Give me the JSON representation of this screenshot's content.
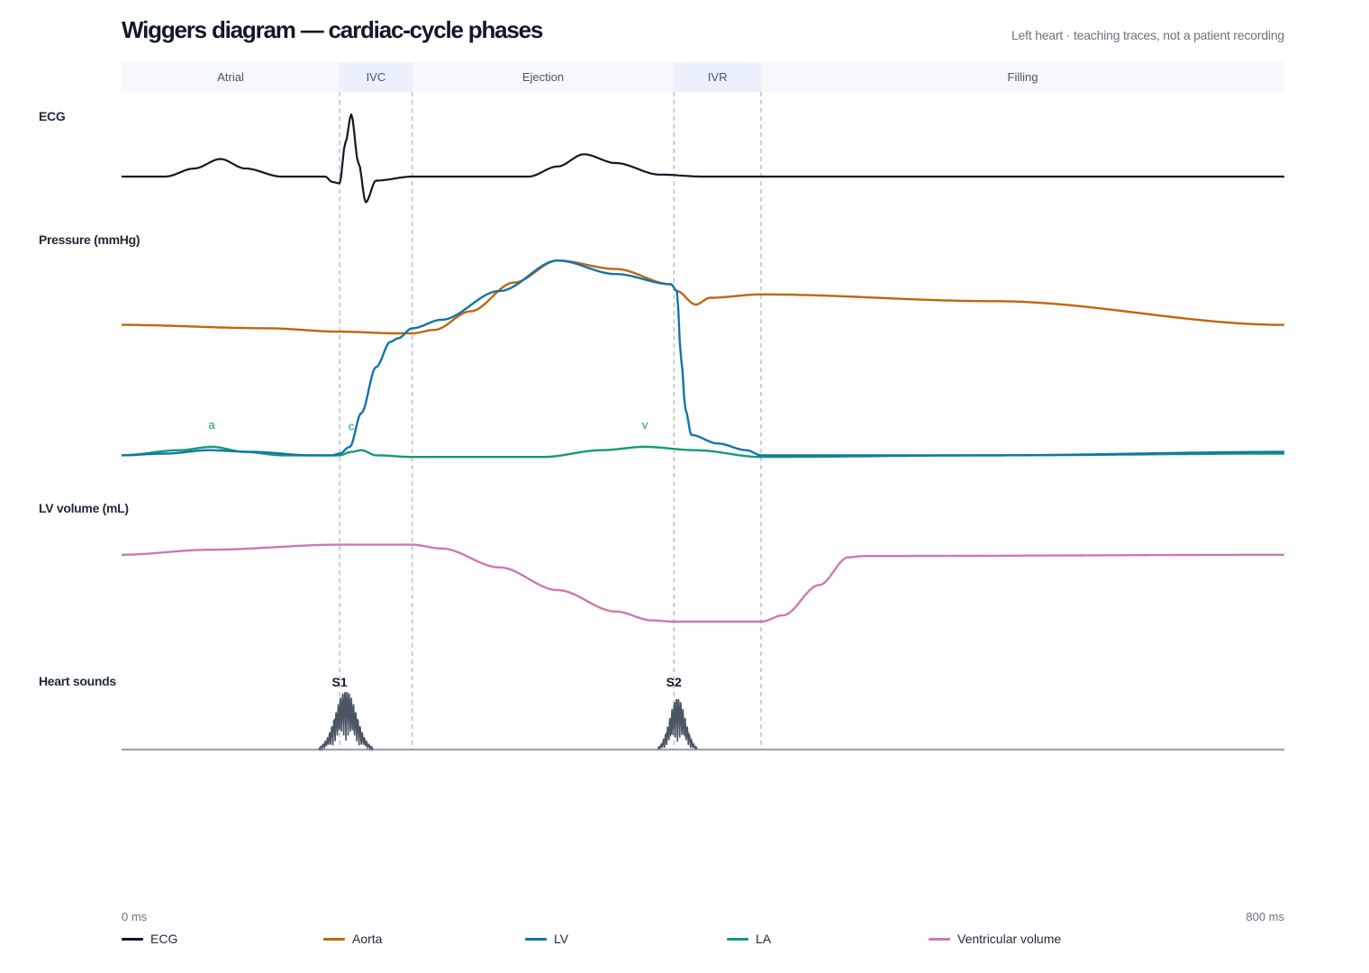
{
  "title": "Wiggers diagram — cardiac-cycle phases",
  "subtitle": "Left heart · teaching traces, not a patient recording",
  "panels": {
    "ecg": "ECG",
    "pressure": "Pressure (mmHg)",
    "volume": "LV volume (mL)",
    "sounds": "Heart sounds"
  },
  "phases": [
    {
      "label": "Atrial",
      "start_ms": 0,
      "end_ms": 150,
      "highlight": false
    },
    {
      "label": "IVC",
      "start_ms": 150,
      "end_ms": 200,
      "highlight": true
    },
    {
      "label": "Ejection",
      "start_ms": 200,
      "end_ms": 380,
      "highlight": false
    },
    {
      "label": "IVR",
      "start_ms": 380,
      "end_ms": 440,
      "highlight": true
    },
    {
      "label": "Filling",
      "start_ms": 440,
      "end_ms": 800,
      "highlight": false
    }
  ],
  "axis": {
    "start_label": "0 ms",
    "end_label": "800 ms"
  },
  "la_wave_labels": [
    {
      "label": "a",
      "t_ms": 62
    },
    {
      "label": "c",
      "t_ms": 158
    },
    {
      "label": "v",
      "t_ms": 360
    }
  ],
  "sound_labels": [
    {
      "label": "S1",
      "t_ms": 150
    },
    {
      "label": "S2",
      "t_ms": 380
    }
  ],
  "legend": [
    {
      "label": "ECG",
      "color": "#111827"
    },
    {
      "label": "Aorta",
      "color": "#c2650e"
    },
    {
      "label": "LV",
      "color": "#1275a8"
    },
    {
      "label": "LA",
      "color": "#16997a"
    },
    {
      "label": "Ventricular volume",
      "color": "#c97bb0"
    }
  ],
  "colors": {
    "phase_band": "#f6f8fb",
    "phase_band_highlight": "#eaf0fc",
    "divider": "#9ca3af",
    "sounds": "#4b5563"
  },
  "chart_data": {
    "type": "line",
    "x_unit": "ms",
    "xlim": [
      0,
      800
    ],
    "series": [
      {
        "name": "ECG",
        "x": [
          0,
          30,
          50,
          68,
          85,
          110,
          140,
          145,
          150,
          154,
          158,
          163,
          168,
          175,
          200,
          280,
          300,
          318,
          340,
          370,
          400,
          800
        ],
        "y": [
          0,
          0,
          0.12,
          0.26,
          0.12,
          0,
          0,
          -0.08,
          -0.1,
          0.5,
          0.92,
          0.2,
          -0.38,
          -0.06,
          0,
          0,
          0.15,
          0.33,
          0.2,
          0.03,
          0,
          0
        ]
      },
      {
        "name": "Aorta",
        "x": [
          0,
          100,
          150,
          190,
          200,
          215,
          240,
          270,
          300,
          340,
          378,
          382,
          395,
          405,
          440,
          600,
          800
        ],
        "y": [
          80,
          78,
          76,
          75,
          75,
          77,
          88,
          105,
          118,
          113,
          104,
          100,
          92,
          96,
          98,
          94,
          80
        ]
      },
      {
        "name": "LV",
        "x": [
          0,
          30,
          60,
          90,
          130,
          145,
          150,
          157,
          165,
          175,
          185,
          190,
          200,
          220,
          260,
          300,
          340,
          378,
          382,
          385,
          388,
          392,
          410,
          430,
          440,
          600,
          800
        ],
        "y": [
          3,
          4,
          6,
          5,
          3,
          3,
          4,
          8,
          28,
          55,
          70,
          72,
          78,
          83,
          100,
          118,
          110,
          104,
          100,
          60,
          30,
          15,
          10,
          6,
          3,
          3,
          5
        ]
      },
      {
        "name": "LA",
        "x": [
          0,
          40,
          62,
          85,
          110,
          150,
          158,
          165,
          175,
          200,
          290,
          330,
          360,
          395,
          440,
          600,
          800
        ],
        "y": [
          3,
          6,
          8,
          5,
          3,
          3,
          5,
          6,
          3,
          2,
          2,
          6,
          8,
          6,
          2,
          3,
          4
        ]
      },
      {
        "name": "Ventricular volume",
        "x": [
          0,
          60,
          150,
          200,
          220,
          260,
          300,
          340,
          365,
          380,
          440,
          455,
          480,
          500,
          510,
          800
        ],
        "y": [
          120,
          124,
          128,
          128,
          125,
          110,
          92,
          75,
          68,
          67,
          67,
          72,
          96,
          118,
          119,
          120
        ]
      }
    ]
  }
}
